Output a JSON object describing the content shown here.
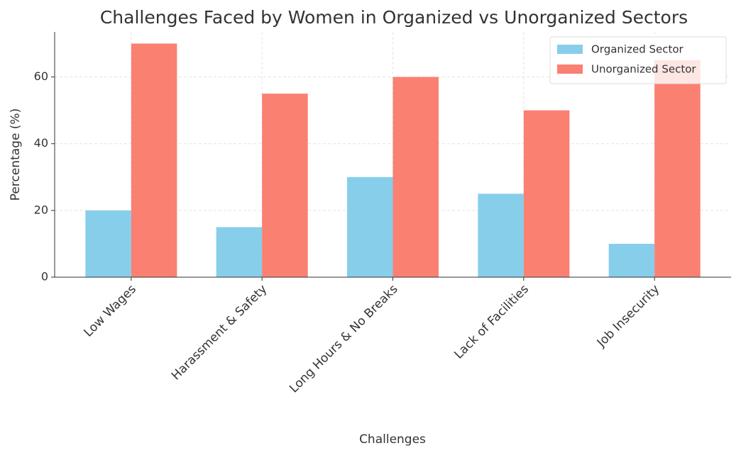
{
  "chart_data": {
    "type": "bar",
    "title": "Challenges Faced by Women in Organized vs Unorganized Sectors",
    "xlabel": "Challenges",
    "ylabel": "Percentage (%)",
    "categories": [
      "Low Wages",
      "Harassment & Safety",
      "Long Hours & No Breaks",
      "Lack of Facilities",
      "Job Insecurity"
    ],
    "series": [
      {
        "name": "Organized Sector",
        "color": "#87ceeb",
        "values": [
          20,
          15,
          30,
          25,
          10
        ]
      },
      {
        "name": "Unorganized Sector",
        "color": "#fa8072",
        "values": [
          70,
          55,
          60,
          50,
          65
        ]
      }
    ],
    "ylim": [
      0,
      73.5
    ],
    "yticks": [
      0,
      20,
      40,
      60
    ],
    "grid": true,
    "legend": "upper right"
  }
}
